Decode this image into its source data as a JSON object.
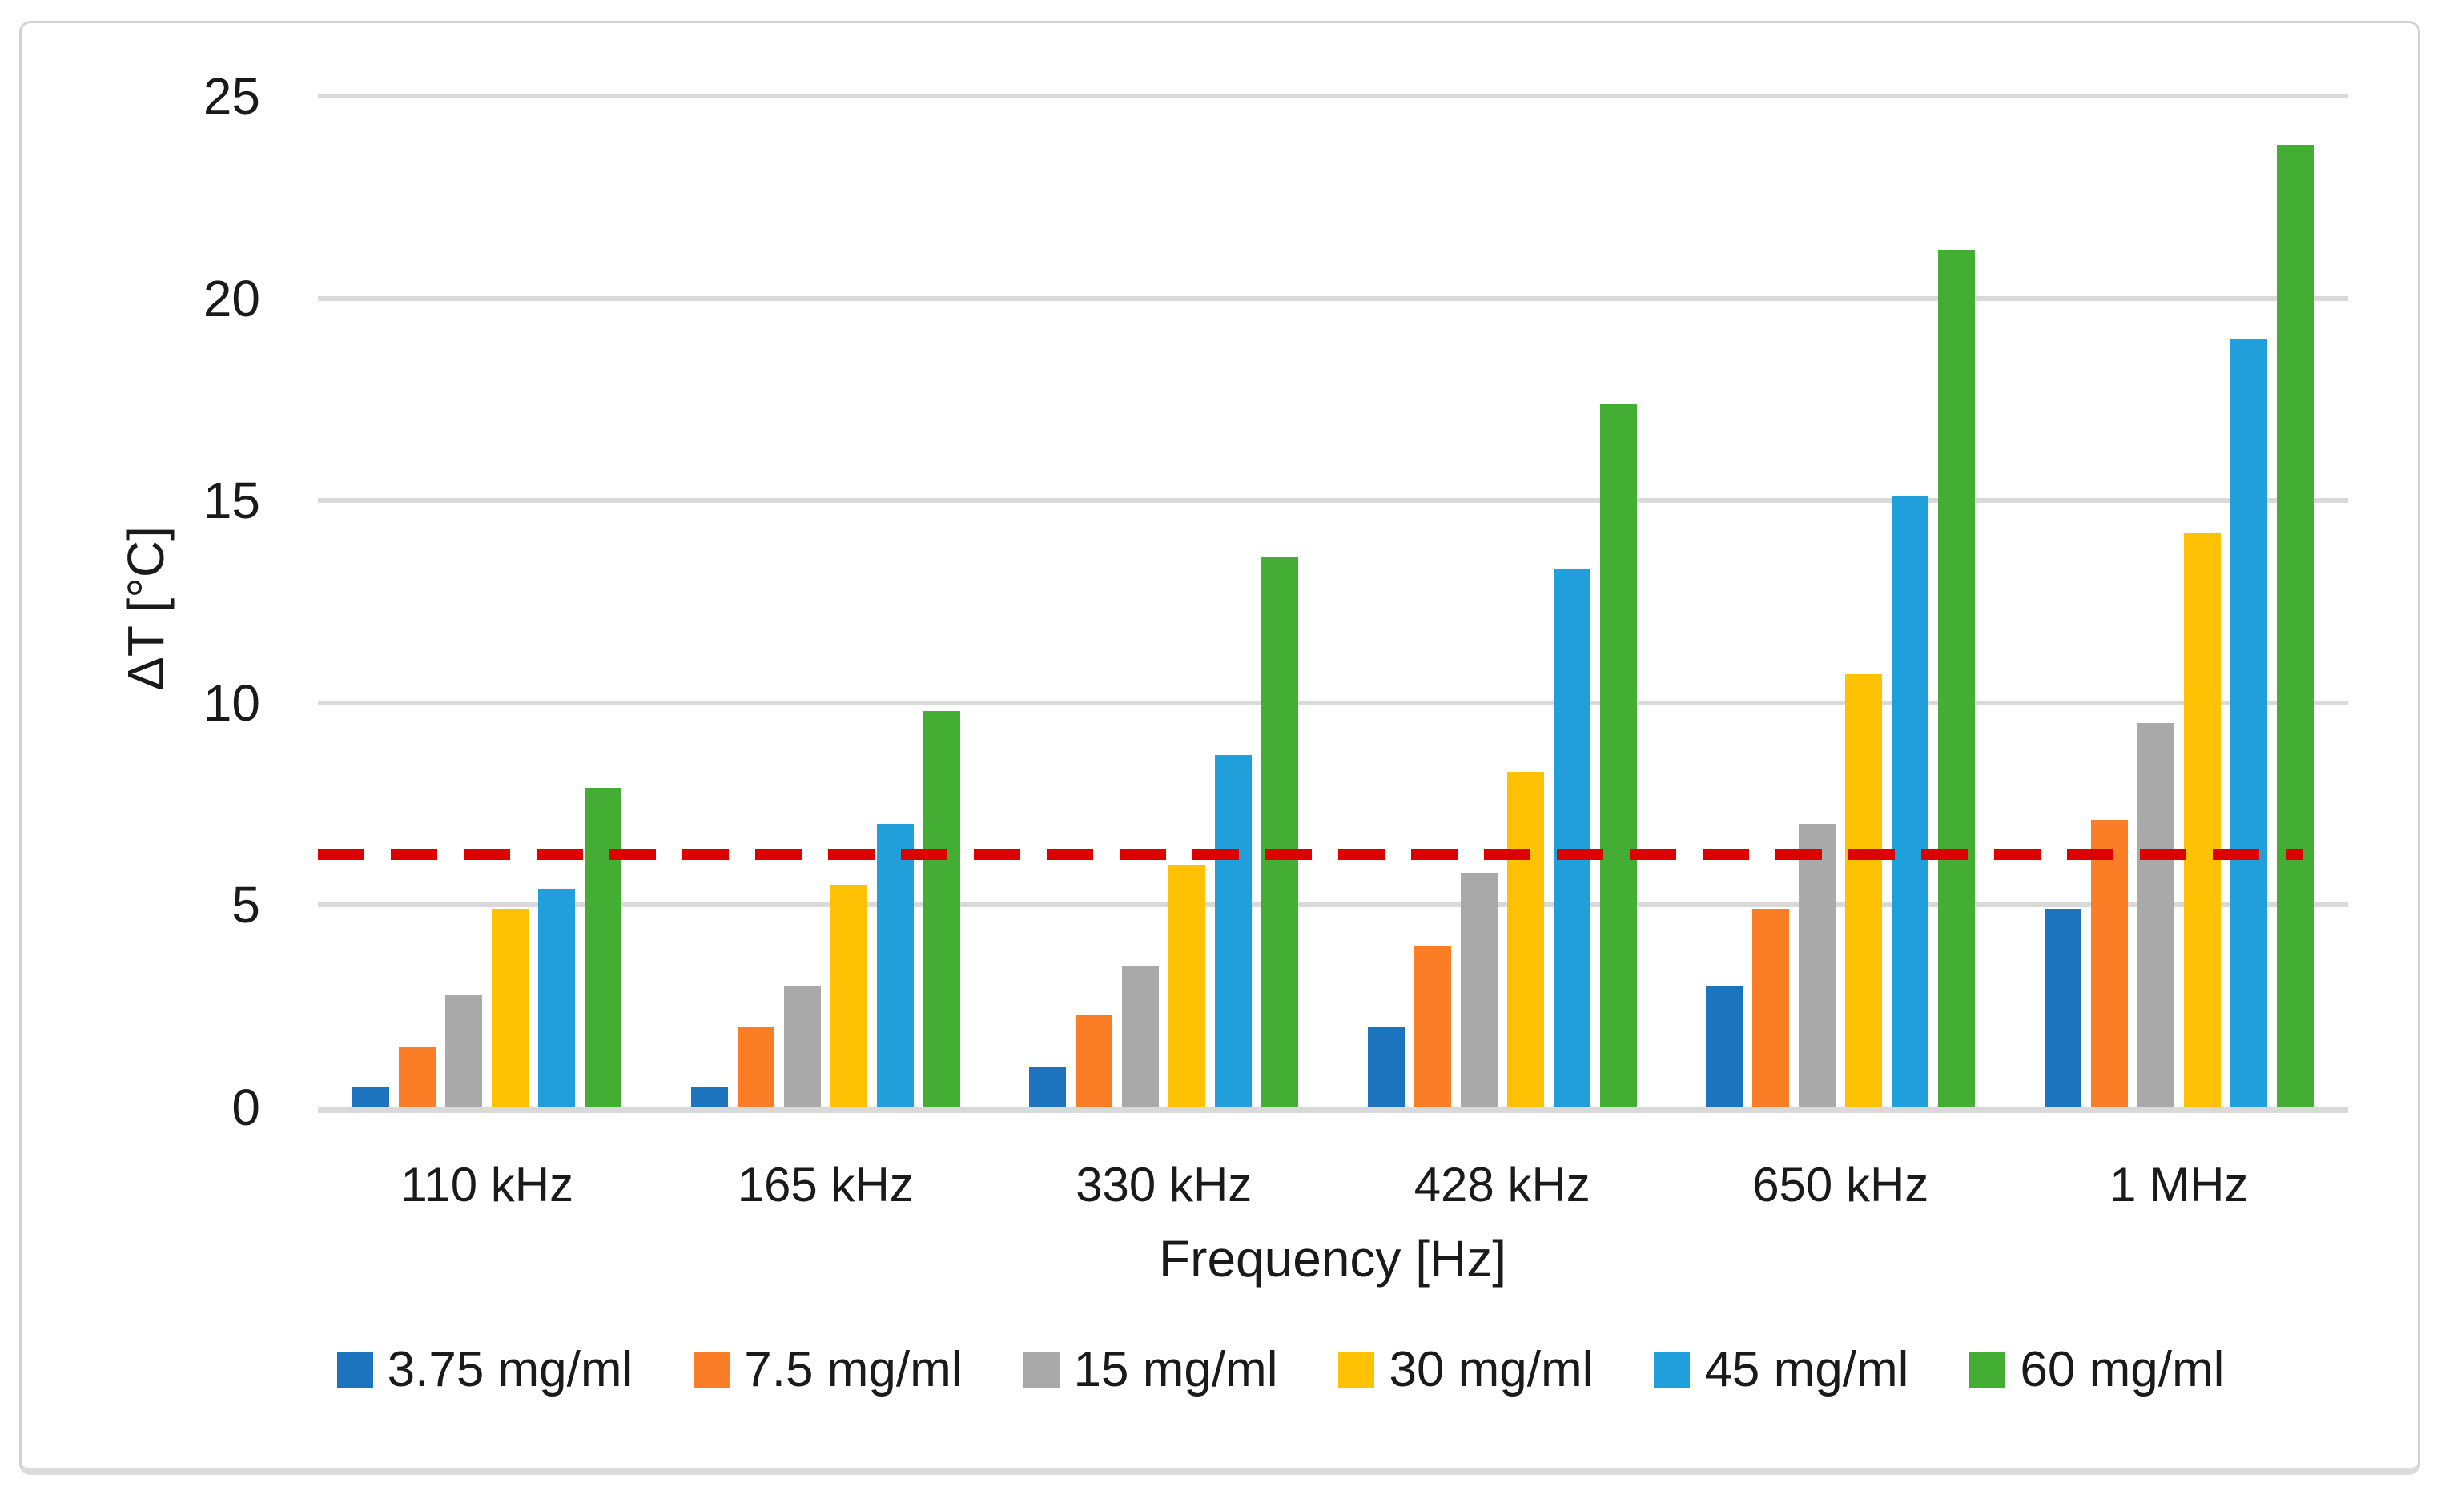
{
  "chart_data": {
    "type": "bar",
    "title": "",
    "xlabel": "Frequency [Hz]",
    "ylabel": "ΔT [°C]",
    "categories": [
      "110 kHz",
      "165 kHz",
      "330 kHz",
      "428 kHz",
      "650 kHz",
      "1 MHz"
    ],
    "series": [
      {
        "name": "3.75 mg/ml",
        "color": "#1C74BF",
        "values": [
          0.5,
          0.5,
          1.0,
          2.0,
          3.0,
          4.9
        ]
      },
      {
        "name": "7.5 mg/ml",
        "color": "#FB7D26",
        "values": [
          1.5,
          2.0,
          2.3,
          4.0,
          4.9,
          7.1
        ]
      },
      {
        "name": "15 mg/ml",
        "color": "#A9A9A9",
        "values": [
          2.8,
          3.0,
          3.5,
          5.8,
          7.0,
          9.5
        ]
      },
      {
        "name": "30 mg/ml",
        "color": "#FFC103",
        "values": [
          4.9,
          5.5,
          6.0,
          8.3,
          10.7,
          14.2
        ]
      },
      {
        "name": "45 mg/ml",
        "color": "#219FDA",
        "values": [
          5.4,
          7.0,
          8.7,
          13.3,
          15.1,
          19.0
        ]
      },
      {
        "name": "60 mg/ml",
        "color": "#43AD34",
        "values": [
          7.9,
          9.8,
          13.6,
          17.4,
          21.2,
          23.8
        ]
      }
    ],
    "reference_line": {
      "value": 6.25,
      "color": "#DC0000",
      "style": "dashed"
    },
    "ylim": [
      0,
      25
    ],
    "ytick_step": 5,
    "yticks": [
      "0",
      "5",
      "10",
      "15",
      "20",
      "25"
    ],
    "grid": true,
    "grid_color": "#D9D9D9",
    "legend_position": "bottom"
  }
}
